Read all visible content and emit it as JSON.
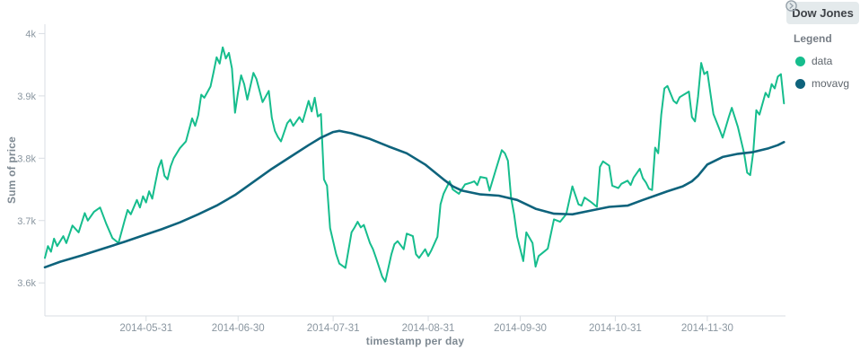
{
  "panel": {
    "title": "Dow Jones",
    "legend": {
      "heading": "Legend",
      "toggle_icon": "chevron-right-circle-icon",
      "items": [
        {
          "label": "data",
          "color": "#16bd8d"
        },
        {
          "label": "movavg",
          "color": "#0e637c"
        }
      ]
    }
  },
  "colors": {
    "accent_green": "#16bd8d",
    "accent_teal": "#0e637c",
    "axis_line": "#d9dee3",
    "tick_text": "#8a96a0",
    "title_text": "#7e8992",
    "header_bg": "#e4eaec",
    "header_text": "#3e4247"
  },
  "chart_data": {
    "type": "line",
    "title": "Dow Jones",
    "xlabel": "timestamp per day",
    "ylabel": "Sum of price",
    "legend_position": "right",
    "grid": false,
    "ylim": [
      3547,
      4015
    ],
    "y_ticks": [
      {
        "label": "4k",
        "value": 4000
      },
      {
        "label": "3.9k",
        "value": 3900
      },
      {
        "label": "3.8k",
        "value": 3800
      },
      {
        "label": "3.7k",
        "value": 3700
      },
      {
        "label": "3.6k",
        "value": 3600
      }
    ],
    "x_unit": "days from left edge of axis",
    "x_day_span": 241.5,
    "x_ticks": [
      {
        "label": "2014-05-31",
        "day": 33
      },
      {
        "label": "2014-06-30",
        "day": 63
      },
      {
        "label": "2014-07-31",
        "day": 94
      },
      {
        "label": "2014-08-31",
        "day": 125
      },
      {
        "label": "2014-09-30",
        "day": 155
      },
      {
        "label": "2014-10-31",
        "day": 186
      },
      {
        "label": "2014-11-30",
        "day": 216
      }
    ],
    "series": [
      {
        "name": "data",
        "color": "#16bd8d",
        "width": 2,
        "points": [
          [
            0,
            3640
          ],
          [
            1,
            3659
          ],
          [
            2,
            3650
          ],
          [
            3,
            3671
          ],
          [
            4,
            3659
          ],
          [
            6,
            3675
          ],
          [
            7,
            3664
          ],
          [
            9,
            3692
          ],
          [
            11,
            3681
          ],
          [
            13,
            3712
          ],
          [
            14,
            3700
          ],
          [
            16,
            3714
          ],
          [
            18,
            3721
          ],
          [
            20,
            3695
          ],
          [
            22,
            3672
          ],
          [
            24,
            3664
          ],
          [
            26,
            3700
          ],
          [
            27,
            3717
          ],
          [
            28,
            3710
          ],
          [
            30,
            3733
          ],
          [
            31,
            3721
          ],
          [
            32,
            3739
          ],
          [
            33,
            3729
          ],
          [
            34,
            3747
          ],
          [
            35,
            3735
          ],
          [
            36,
            3760
          ],
          [
            37,
            3784
          ],
          [
            38,
            3797
          ],
          [
            39,
            3772
          ],
          [
            40,
            3766
          ],
          [
            41,
            3787
          ],
          [
            42,
            3800
          ],
          [
            44,
            3816
          ],
          [
            46,
            3827
          ],
          [
            48,
            3864
          ],
          [
            49,
            3852
          ],
          [
            50,
            3869
          ],
          [
            51,
            3902
          ],
          [
            52,
            3897
          ],
          [
            54,
            3915
          ],
          [
            55,
            3938
          ],
          [
            56,
            3962
          ],
          [
            57,
            3952
          ],
          [
            58,
            3978
          ],
          [
            59,
            3960
          ],
          [
            60,
            3969
          ],
          [
            61,
            3944
          ],
          [
            62,
            3873
          ],
          [
            63,
            3906
          ],
          [
            64,
            3933
          ],
          [
            65,
            3919
          ],
          [
            66,
            3894
          ],
          [
            68,
            3937
          ],
          [
            69,
            3927
          ],
          [
            71,
            3890
          ],
          [
            73,
            3908
          ],
          [
            74,
            3865
          ],
          [
            75,
            3844
          ],
          [
            76,
            3834
          ],
          [
            77,
            3827
          ],
          [
            79,
            3856
          ],
          [
            80,
            3862
          ],
          [
            81,
            3852
          ],
          [
            83,
            3866
          ],
          [
            84,
            3858
          ],
          [
            86,
            3892
          ],
          [
            87,
            3875
          ],
          [
            88,
            3897
          ],
          [
            89,
            3867
          ],
          [
            90,
            3871
          ],
          [
            91,
            3766
          ],
          [
            92,
            3756
          ],
          [
            93,
            3688
          ],
          [
            95,
            3646
          ],
          [
            96,
            3631
          ],
          [
            98,
            3624
          ],
          [
            100,
            3681
          ],
          [
            101,
            3689
          ],
          [
            102,
            3698
          ],
          [
            103,
            3689
          ],
          [
            104,
            3693
          ],
          [
            106,
            3664
          ],
          [
            107,
            3654
          ],
          [
            108,
            3640
          ],
          [
            110,
            3610
          ],
          [
            111,
            3602
          ],
          [
            113,
            3646
          ],
          [
            114,
            3662
          ],
          [
            115,
            3667
          ],
          [
            117,
            3654
          ],
          [
            118,
            3679
          ],
          [
            120,
            3675
          ],
          [
            121,
            3646
          ],
          [
            122,
            3640
          ],
          [
            124,
            3654
          ],
          [
            125,
            3643
          ],
          [
            126,
            3652
          ],
          [
            128,
            3674
          ],
          [
            129,
            3726
          ],
          [
            130,
            3743
          ],
          [
            132,
            3763
          ],
          [
            133,
            3750
          ],
          [
            135,
            3743
          ],
          [
            137,
            3758
          ],
          [
            139,
            3761
          ],
          [
            140,
            3763
          ],
          [
            141,
            3757
          ],
          [
            142,
            3770
          ],
          [
            144,
            3768
          ],
          [
            145,
            3748
          ],
          [
            147,
            3781
          ],
          [
            149,
            3813
          ],
          [
            150,
            3808
          ],
          [
            151,
            3796
          ],
          [
            152,
            3737
          ],
          [
            153,
            3710
          ],
          [
            154,
            3674
          ],
          [
            156,
            3635
          ],
          [
            157,
            3681
          ],
          [
            159,
            3664
          ],
          [
            160,
            3626
          ],
          [
            161,
            3643
          ],
          [
            163,
            3651
          ],
          [
            164,
            3655
          ],
          [
            166,
            3702
          ],
          [
            168,
            3698
          ],
          [
            170,
            3710
          ],
          [
            172,
            3755
          ],
          [
            174,
            3726
          ],
          [
            175,
            3724
          ],
          [
            176,
            3737
          ],
          [
            178,
            3730
          ],
          [
            180,
            3722
          ],
          [
            181,
            3786
          ],
          [
            182,
            3795
          ],
          [
            184,
            3788
          ],
          [
            185,
            3756
          ],
          [
            187,
            3752
          ],
          [
            188,
            3759
          ],
          [
            190,
            3764
          ],
          [
            191,
            3757
          ],
          [
            192,
            3769
          ],
          [
            194,
            3783
          ],
          [
            195,
            3768
          ],
          [
            196,
            3761
          ],
          [
            197,
            3751
          ],
          [
            198,
            3749
          ],
          [
            199,
            3817
          ],
          [
            200,
            3808
          ],
          [
            201,
            3870
          ],
          [
            202,
            3912
          ],
          [
            203,
            3916
          ],
          [
            205,
            3892
          ],
          [
            206,
            3888
          ],
          [
            207,
            3898
          ],
          [
            209,
            3904
          ],
          [
            210,
            3907
          ],
          [
            211,
            3866
          ],
          [
            212,
            3859
          ],
          [
            213,
            3899
          ],
          [
            214,
            3953
          ],
          [
            215,
            3935
          ],
          [
            216,
            3939
          ],
          [
            218,
            3871
          ],
          [
            220,
            3846
          ],
          [
            221,
            3833
          ],
          [
            223,
            3866
          ],
          [
            224,
            3881
          ],
          [
            226,
            3850
          ],
          [
            228,
            3808
          ],
          [
            229,
            3777
          ],
          [
            230,
            3773
          ],
          [
            231,
            3810
          ],
          [
            232,
            3877
          ],
          [
            233,
            3870
          ],
          [
            235,
            3905
          ],
          [
            236,
            3898
          ],
          [
            237,
            3919
          ],
          [
            238,
            3912
          ],
          [
            239,
            3931
          ],
          [
            240,
            3935
          ],
          [
            241,
            3888
          ]
        ]
      },
      {
        "name": "movavg",
        "color": "#0e637c",
        "width": 2.6,
        "points": [
          [
            0,
            3625
          ],
          [
            5,
            3634
          ],
          [
            12,
            3644
          ],
          [
            19,
            3655
          ],
          [
            26,
            3666
          ],
          [
            32,
            3676
          ],
          [
            38,
            3686
          ],
          [
            44,
            3697
          ],
          [
            50,
            3710
          ],
          [
            56,
            3724
          ],
          [
            62,
            3741
          ],
          [
            68,
            3762
          ],
          [
            74,
            3783
          ],
          [
            80,
            3802
          ],
          [
            86,
            3821
          ],
          [
            90,
            3833
          ],
          [
            94,
            3842
          ],
          [
            96,
            3844
          ],
          [
            100,
            3840
          ],
          [
            106,
            3831
          ],
          [
            112,
            3819
          ],
          [
            118,
            3808
          ],
          [
            124,
            3790
          ],
          [
            127,
            3778
          ],
          [
            130,
            3766
          ],
          [
            133,
            3755
          ],
          [
            136,
            3748
          ],
          [
            142,
            3742
          ],
          [
            148,
            3740
          ],
          [
            154,
            3733
          ],
          [
            160,
            3719
          ],
          [
            166,
            3711
          ],
          [
            172,
            3710
          ],
          [
            178,
            3716
          ],
          [
            184,
            3722
          ],
          [
            190,
            3724
          ],
          [
            195,
            3733
          ],
          [
            199,
            3740
          ],
          [
            203,
            3747
          ],
          [
            208,
            3755
          ],
          [
            211,
            3763
          ],
          [
            213,
            3772
          ],
          [
            216,
            3790
          ],
          [
            221,
            3802
          ],
          [
            226,
            3807
          ],
          [
            231,
            3810
          ],
          [
            236,
            3816
          ],
          [
            239,
            3821
          ],
          [
            241,
            3826
          ]
        ]
      }
    ]
  }
}
